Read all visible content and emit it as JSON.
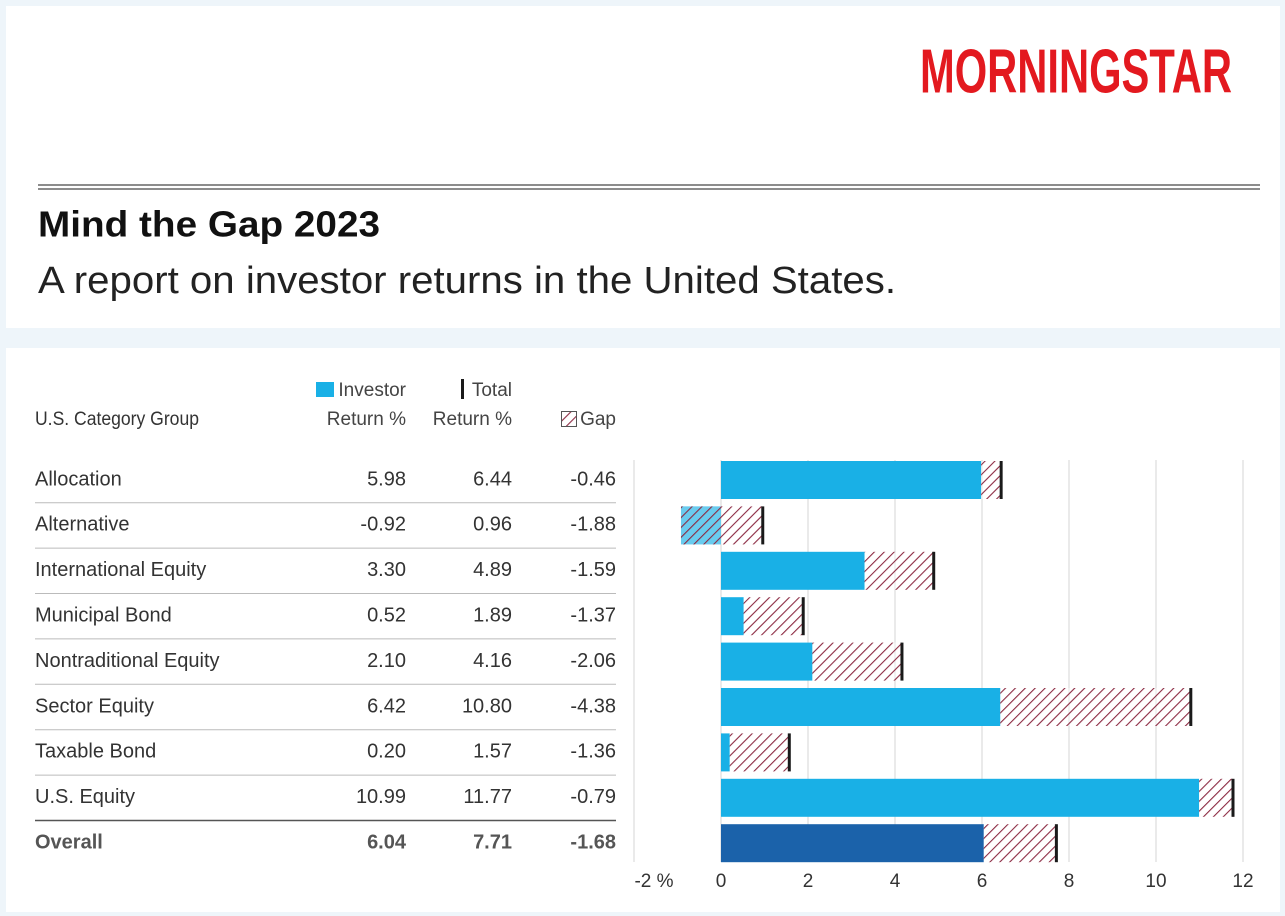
{
  "chart_data": {
    "type": "bar",
    "orientation": "horizontal",
    "logo": "MORNINGSTAR",
    "title": "Mind the Gap 2023",
    "subtitle": "A report on investor returns in the United States.",
    "category_label": "U.S. Category Group",
    "categories": [
      "Allocation",
      "Alternative",
      "International Equity",
      "Municipal Bond",
      "Nontraditional Equity",
      "Sector Equity",
      "Taxable Bond",
      "U.S. Equity",
      "Overall"
    ],
    "series": [
      {
        "name": "Investor Return %",
        "color": "#19b0e6",
        "colors": [
          "#19b0e6",
          "#19b0e6",
          "#19b0e6",
          "#19b0e6",
          "#19b0e6",
          "#19b0e6",
          "#19b0e6",
          "#19b0e6",
          "#1b62aa"
        ],
        "values": [
          5.98,
          -0.92,
          3.3,
          0.52,
          2.1,
          6.42,
          0.2,
          10.99,
          6.04
        ],
        "value_labels": [
          "5.98",
          "-0.92",
          "3.30",
          "0.52",
          "2.10",
          "6.42",
          "0.20",
          "10.99",
          "6.04"
        ]
      },
      {
        "name": "Total Return %",
        "color": "#1a1a1a",
        "values": [
          6.44,
          0.96,
          4.89,
          1.89,
          4.16,
          10.8,
          1.57,
          11.77,
          7.71
        ],
        "value_labels": [
          "6.44",
          "0.96",
          "4.89",
          "1.89",
          "4.16",
          "10.80",
          "1.57",
          "11.77",
          "7.71"
        ]
      },
      {
        "name": "Gap",
        "color": "#8c2a42",
        "values": [
          -0.46,
          -1.88,
          -1.59,
          -1.37,
          -2.06,
          -4.38,
          -1.36,
          -0.79,
          -1.68
        ],
        "value_labels": [
          "-0.46",
          "-1.88",
          "-1.59",
          "-1.37",
          "-2.06",
          "-4.38",
          "-1.36",
          "-0.79",
          "-1.68"
        ]
      }
    ],
    "xlim": [
      -2,
      12
    ],
    "xticks": [
      {
        "value": -2,
        "label": "-2 %"
      },
      0,
      2,
      4,
      6,
      8,
      10,
      12
    ],
    "grid": true
  }
}
